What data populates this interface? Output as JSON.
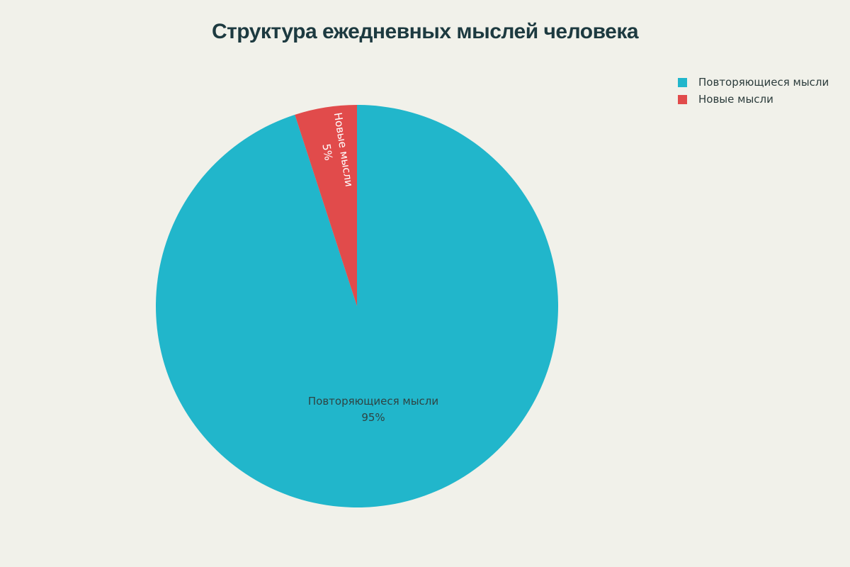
{
  "title": "Структура ежедневных мыслей человека",
  "colors": {
    "background": "#f1f1ea",
    "repeating_slice": "#21b6cb",
    "new_slice": "#e14b4b",
    "title_text": "#1d3a40",
    "inside_dark_text": "#2e4444",
    "inside_light_text": "#ffffff",
    "legend_text": "#2c3c3c"
  },
  "legend": {
    "items": [
      {
        "label": "Повторяющиеся мысли",
        "color": "#21b6cb"
      },
      {
        "label": "Новые мысли",
        "color": "#e14b4b"
      }
    ]
  },
  "slice_labels": {
    "repeating": {
      "name": "Повторяющиеся мысли",
      "pct": "95%"
    },
    "new": {
      "name": "Новые мысли",
      "pct": "5%"
    }
  },
  "chart_data": {
    "type": "pie",
    "title": "Структура ежедневных мыслей человека",
    "labels": [
      "Повторяющиеся мысли",
      "Новые мысли"
    ],
    "values": [
      95,
      5
    ],
    "unit": "percent",
    "colors": [
      "#21b6cb",
      "#e14b4b"
    ],
    "start_angle_deg": 0,
    "direction": "clockwise",
    "legend_position": "top-right",
    "inside_labels": [
      "Повторяющиеся мысли 95%",
      "Новые мысли 5%"
    ]
  }
}
